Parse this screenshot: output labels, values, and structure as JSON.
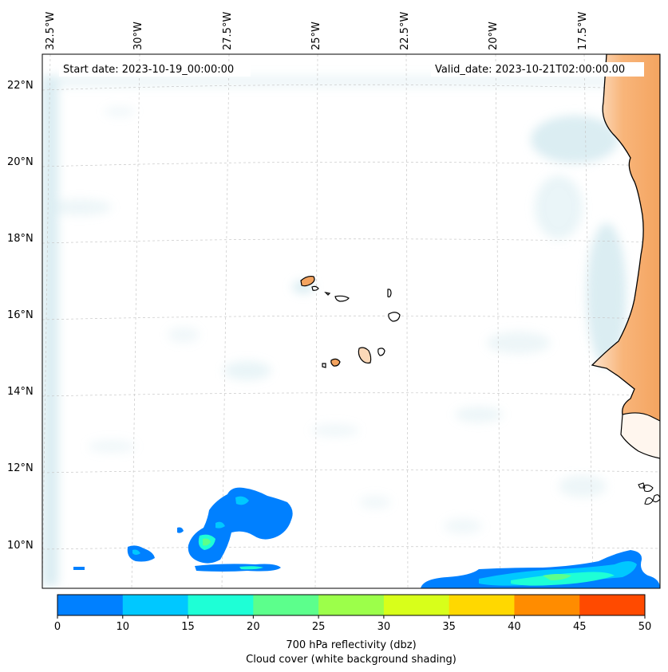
{
  "header": {
    "start_date": "Start date: 2023-10-19_00:00:00",
    "valid_date": "Valid_date: 2023-10-21T02:00:00.00"
  },
  "map": {
    "projection_labels": {
      "longitudes": [
        "32.5°W",
        "30°W",
        "27.5°W",
        "25°W",
        "22.5°W",
        "20°W",
        "17.5°W"
      ],
      "latitudes": [
        "22°N",
        "20°N",
        "18°N",
        "16°N",
        "14°N",
        "12°N",
        "10°N"
      ]
    },
    "colors": {
      "ocean": "#ffffff",
      "cloud_shading": "#cfe7ee",
      "land": "#f4a460",
      "coastline": "#000000",
      "gridline": "#cccccc"
    }
  },
  "colorbar": {
    "colors": [
      "#0080ff",
      "#00c8ff",
      "#1effd6",
      "#5cff8c",
      "#9cff4a",
      "#d8ff1a",
      "#ffd800",
      "#ff8c00",
      "#ff4a00"
    ],
    "ticks": [
      "0",
      "10",
      "15",
      "20",
      "25",
      "30",
      "35",
      "40",
      "45",
      "50"
    ],
    "label_line1": "700 hPa reflectivity (dbz)",
    "label_line2": "Cloud cover (white background shading)"
  }
}
